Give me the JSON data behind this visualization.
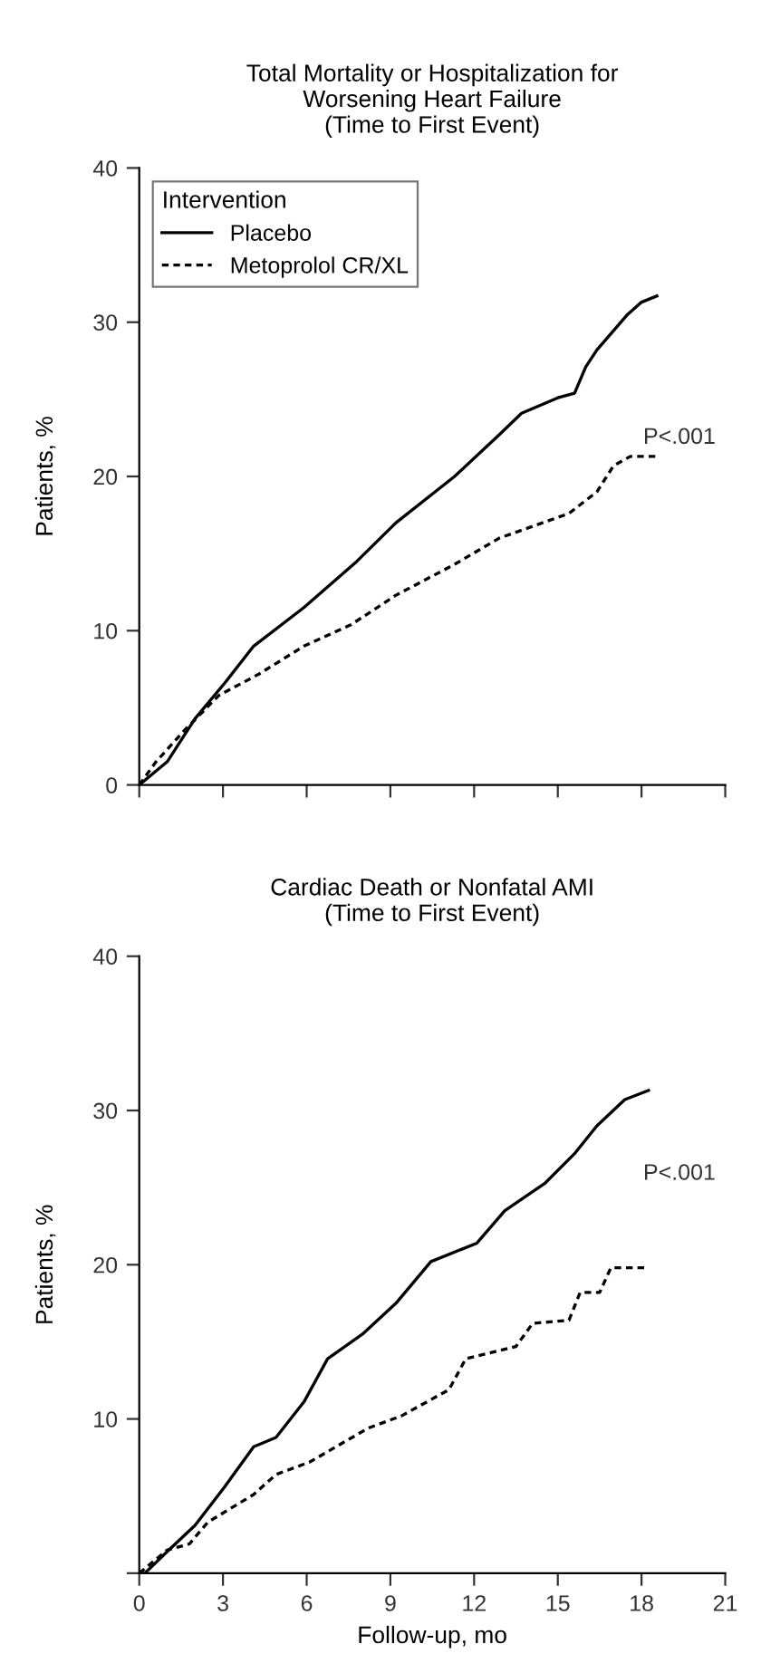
{
  "chart_data": [
    {
      "type": "line",
      "title": "Total Mortality or Hospitalization for\nWorsening Heart Failure\n(Time to First Event)",
      "ylabel": "Patients, %",
      "legend_title": "Intervention",
      "legend": "top left",
      "grid": false,
      "tick_labels": "y",
      "xlim": [
        0,
        21
      ],
      "xticks": [
        0,
        3,
        6,
        9,
        12,
        15,
        18,
        21
      ],
      "ylim": [
        0,
        40
      ],
      "yticks": [
        0,
        10,
        20,
        30,
        40
      ],
      "annotations": [
        "P<.001"
      ],
      "series": [
        {
          "name": "Placebo",
          "color": "#000000",
          "line_style": "solid",
          "x": [
            0,
            1.0,
            2.0,
            3.06,
            4.1,
            5.9,
            7.8,
            9.2,
            11.3,
            12.9,
            13.7,
            15.0,
            15.6,
            16.0,
            16.4,
            17.5,
            18.0,
            18.55
          ],
          "values": [
            0,
            1.5,
            4.3,
            6.6,
            9.0,
            11.5,
            14.5,
            17.0,
            20.0,
            22.7,
            24.1,
            25.1,
            25.4,
            27.1,
            28.2,
            30.5,
            31.3,
            31.7
          ]
        },
        {
          "name": "Metoprolol CR/XL",
          "color": "#000000",
          "line_style": "dashed",
          "x": [
            0,
            0.6,
            1.6,
            2.85,
            4.3,
            5.9,
            7.6,
            9.2,
            11.3,
            12.9,
            15.4,
            16.4,
            17.0,
            17.6,
            18.65
          ],
          "values": [
            0,
            1.5,
            3.5,
            5.8,
            7.2,
            9.0,
            10.4,
            12.3,
            14.3,
            16.0,
            17.6,
            19.0,
            20.7,
            21.3,
            21.3
          ]
        }
      ]
    },
    {
      "type": "line",
      "title": "Cardiac Death or Nonfatal AMI\n(Time to First Event)",
      "ylabel": "Patients, %",
      "xlabel": "Follow-up, mo",
      "legend": false,
      "grid": false,
      "xlim": [
        0,
        21
      ],
      "xticks": [
        0,
        3,
        6,
        9,
        12,
        15,
        18,
        21
      ],
      "ylim": [
        0,
        40
      ],
      "yticks": [
        {
          "value": 0,
          "label": null
        },
        10,
        20,
        30,
        40
      ],
      "annotations": [
        "P<.001"
      ],
      "series": [
        {
          "color": "#000000",
          "line_style": "solid",
          "x": [
            0,
            0.2,
            1.0,
            2.0,
            3.06,
            4.1,
            4.9,
            5.9,
            6.75,
            8.0,
            9.2,
            10.45,
            12.1,
            13.1,
            14.55,
            15.6,
            16.4,
            17.4,
            18.25
          ],
          "values": [
            0,
            0,
            1.4,
            3.1,
            5.6,
            8.2,
            8.8,
            11.1,
            13.9,
            15.5,
            17.5,
            20.2,
            21.4,
            23.5,
            25.3,
            27.2,
            29.0,
            30.7,
            31.3
          ]
        },
        {
          "color": "#000000",
          "line_style": "dashed",
          "x": [
            0,
            1.0,
            1.8,
            2.45,
            4.1,
            4.9,
            6.1,
            8.2,
            9.4,
            11.1,
            11.7,
            13.5,
            14.1,
            15.4,
            15.8,
            16.5,
            16.9,
            18.25
          ],
          "values": [
            0,
            1.5,
            1.9,
            3.3,
            5.1,
            6.4,
            7.2,
            9.4,
            10.2,
            11.9,
            13.9,
            14.7,
            16.2,
            16.4,
            18.2,
            18.2,
            19.8,
            19.8
          ]
        }
      ]
    }
  ]
}
